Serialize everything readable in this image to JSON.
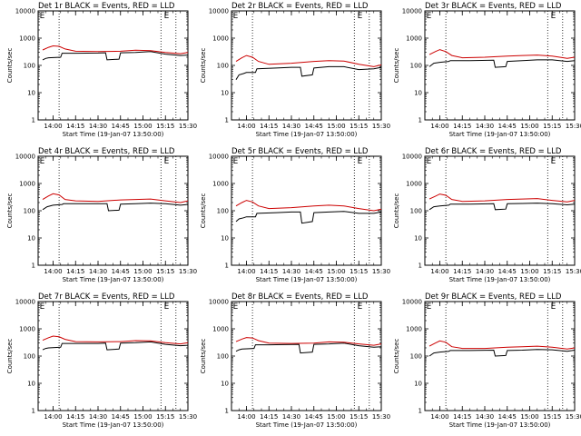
{
  "chart_data": [
    {
      "type": "line",
      "title": "Det 1r BLACK = Events, RED = LLD",
      "ylabel": "Counts/sec",
      "xlabel": "Start Time (19-Jan-07 13:50:00)",
      "yscale": "log",
      "ylim": [
        1,
        10000
      ],
      "xlim": [
        "13:50",
        "15:30"
      ],
      "x_ticks": [
        "14:00",
        "14:15",
        "14:30",
        "14:45",
        "15:00",
        "15:15",
        "15:30"
      ],
      "y_ticks": [
        "1",
        "10",
        "100",
        "1000",
        "10000"
      ],
      "vlines": [
        "14:04",
        "15:12",
        "15:22"
      ],
      "flags": [
        {
          "label": "E",
          "x": "13:51"
        },
        {
          "label": "E",
          "x": "15:14"
        }
      ],
      "series": [
        {
          "color": "#000000",
          "x": [
            "13:53",
            "13:55",
            "13:57",
            "14:05",
            "14:06",
            "14:15",
            "14:30",
            "14:35",
            "14:36",
            "14:44",
            "14:45",
            "14:55",
            "15:05",
            "15:15",
            "15:25",
            "15:30"
          ],
          "y": [
            160,
            180,
            190,
            200,
            280,
            280,
            285,
            290,
            160,
            170,
            290,
            300,
            320,
            260,
            230,
            240
          ]
        },
        {
          "color": "#cc0000",
          "x": [
            "13:53",
            "13:57",
            "14:00",
            "14:04",
            "14:08",
            "14:15",
            "14:30",
            "14:45",
            "14:55",
            "15:05",
            "15:15",
            "15:25",
            "15:30"
          ],
          "y": [
            370,
            460,
            520,
            500,
            400,
            330,
            320,
            330,
            360,
            350,
            300,
            270,
            300
          ]
        }
      ]
    },
    {
      "type": "line",
      "title": "Det 2r BLACK = Events, RED = LLD",
      "ylabel": "Counts/sec",
      "xlabel": "Start Time (19-Jan-07 13:50:00)",
      "yscale": "log",
      "ylim": [
        1,
        10000
      ],
      "xlim": [
        "13:50",
        "15:30"
      ],
      "x_ticks": [
        "14:00",
        "14:15",
        "14:30",
        "14:45",
        "15:00",
        "15:15",
        "15:30"
      ],
      "y_ticks": [
        "1",
        "10",
        "100",
        "1000",
        "10000"
      ],
      "vlines": [
        "14:04",
        "15:12",
        "15:22"
      ],
      "flags": [
        {
          "label": "E",
          "x": "13:51"
        },
        {
          "label": "E",
          "x": "15:14"
        }
      ],
      "series": [
        {
          "color": "#000000",
          "x": [
            "13:53",
            "13:55",
            "13:58",
            "14:00",
            "14:06",
            "14:07",
            "14:20",
            "14:30",
            "14:36",
            "14:37",
            "14:44",
            "14:45",
            "14:55",
            "15:05",
            "15:15",
            "15:25",
            "15:30"
          ],
          "y": [
            30,
            45,
            50,
            55,
            55,
            75,
            80,
            85,
            85,
            40,
            45,
            80,
            90,
            90,
            70,
            75,
            85
          ]
        },
        {
          "color": "#cc0000",
          "x": [
            "13:53",
            "13:57",
            "14:00",
            "14:04",
            "14:08",
            "14:15",
            "14:30",
            "14:45",
            "14:55",
            "15:05",
            "15:15",
            "15:25",
            "15:30"
          ],
          "y": [
            140,
            190,
            230,
            200,
            140,
            110,
            120,
            140,
            150,
            145,
            110,
            90,
            105
          ]
        }
      ]
    },
    {
      "type": "line",
      "title": "Det 3r BLACK = Events, RED = LLD",
      "ylabel": "Counts/sec",
      "xlabel": "Start Time (19-Jan-07 13:50:00)",
      "yscale": "log",
      "ylim": [
        1,
        10000
      ],
      "xlim": [
        "13:50",
        "15:30"
      ],
      "x_ticks": [
        "14:00",
        "14:15",
        "14:30",
        "14:45",
        "15:00",
        "15:15",
        "15:30"
      ],
      "y_ticks": [
        "1",
        "10",
        "100",
        "1000",
        "10000"
      ],
      "vlines": [
        "14:04",
        "15:12",
        "15:22"
      ],
      "flags": [
        {
          "label": "E",
          "x": "13:51"
        },
        {
          "label": "E",
          "x": "15:14"
        }
      ],
      "series": [
        {
          "color": "#000000",
          "x": [
            "13:53",
            "13:56",
            "14:00",
            "14:06",
            "14:07",
            "14:20",
            "14:36",
            "14:37",
            "14:44",
            "14:45",
            "14:55",
            "15:05",
            "15:15",
            "15:25",
            "15:30"
          ],
          "y": [
            90,
            120,
            130,
            140,
            150,
            150,
            155,
            85,
            90,
            140,
            150,
            160,
            160,
            140,
            150
          ]
        },
        {
          "color": "#cc0000",
          "x": [
            "13:53",
            "13:57",
            "14:00",
            "14:04",
            "14:08",
            "14:15",
            "14:30",
            "14:45",
            "14:55",
            "15:05",
            "15:15",
            "15:25",
            "15:30"
          ],
          "y": [
            250,
            320,
            380,
            320,
            230,
            190,
            200,
            220,
            230,
            240,
            220,
            180,
            200
          ]
        }
      ]
    },
    {
      "type": "line",
      "title": "Det 4r BLACK = Events, RED = LLD",
      "ylabel": "Counts/sec",
      "xlabel": "Start Time (19-Jan-07 13:50:00)",
      "yscale": "log",
      "ylim": [
        1,
        10000
      ],
      "xlim": [
        "13:50",
        "15:30"
      ],
      "x_ticks": [
        "14:00",
        "14:15",
        "14:30",
        "14:45",
        "15:00",
        "15:15",
        "15:30"
      ],
      "y_ticks": [
        "1",
        "10",
        "100",
        "1000",
        "10000"
      ],
      "vlines": [
        "14:04",
        "15:12",
        "15:22"
      ],
      "flags": [
        {
          "label": "E",
          "x": "13:51"
        },
        {
          "label": "E",
          "x": "15:14"
        }
      ],
      "series": [
        {
          "color": "#000000",
          "x": [
            "13:53",
            "13:56",
            "14:00",
            "14:06",
            "14:07",
            "14:20",
            "14:36",
            "14:37",
            "14:44",
            "14:45",
            "14:55",
            "15:05",
            "15:15",
            "15:25",
            "15:30"
          ],
          "y": [
            110,
            140,
            160,
            170,
            180,
            180,
            180,
            100,
            105,
            175,
            180,
            190,
            180,
            160,
            170
          ]
        },
        {
          "color": "#cc0000",
          "x": [
            "13:53",
            "13:57",
            "14:00",
            "14:04",
            "14:08",
            "14:15",
            "14:30",
            "14:45",
            "14:55",
            "15:05",
            "15:15",
            "15:25",
            "15:30"
          ],
          "y": [
            260,
            350,
            420,
            380,
            260,
            230,
            220,
            250,
            260,
            270,
            230,
            200,
            230
          ]
        }
      ]
    },
    {
      "type": "line",
      "title": "Det 5r BLACK = Events, RED = LLD",
      "ylabel": "Counts/sec",
      "xlabel": "Start Time (19-Jan-07 13:50:00)",
      "yscale": "log",
      "ylim": [
        1,
        10000
      ],
      "xlim": [
        "13:50",
        "15:30"
      ],
      "x_ticks": [
        "14:00",
        "14:15",
        "14:30",
        "14:45",
        "15:00",
        "15:15",
        "15:30"
      ],
      "y_ticks": [
        "1",
        "10",
        "100",
        "1000",
        "10000"
      ],
      "vlines": [
        "14:04",
        "15:12",
        "15:22"
      ],
      "flags": [
        {
          "label": "E",
          "x": "13:51"
        },
        {
          "label": "E",
          "x": "15:14"
        }
      ],
      "series": [
        {
          "color": "#000000",
          "x": [
            "13:53",
            "13:55",
            "13:58",
            "14:00",
            "14:06",
            "14:07",
            "14:20",
            "14:30",
            "14:36",
            "14:37",
            "14:44",
            "14:45",
            "14:55",
            "15:05",
            "15:15",
            "15:25",
            "15:30"
          ],
          "y": [
            40,
            50,
            55,
            60,
            60,
            80,
            85,
            90,
            90,
            35,
            40,
            85,
            90,
            95,
            80,
            80,
            90
          ]
        },
        {
          "color": "#cc0000",
          "x": [
            "13:53",
            "13:57",
            "14:00",
            "14:04",
            "14:08",
            "14:15",
            "14:30",
            "14:45",
            "14:55",
            "15:05",
            "15:15",
            "15:25",
            "15:30"
          ],
          "y": [
            150,
            200,
            240,
            210,
            150,
            120,
            130,
            150,
            160,
            150,
            120,
            100,
            115
          ]
        }
      ]
    },
    {
      "type": "line",
      "title": "Det 6r BLACK = Events, RED = LLD",
      "ylabel": "Counts/sec",
      "xlabel": "Start Time (19-Jan-07 13:50:00)",
      "yscale": "log",
      "ylim": [
        1,
        10000
      ],
      "xlim": [
        "13:50",
        "15:30"
      ],
      "x_ticks": [
        "14:00",
        "14:15",
        "14:30",
        "14:45",
        "15:00",
        "15:15",
        "15:30"
      ],
      "y_ticks": [
        "1",
        "10",
        "100",
        "1000",
        "10000"
      ],
      "vlines": [
        "14:04",
        "15:12",
        "15:22"
      ],
      "flags": [
        {
          "label": "E",
          "x": "13:51"
        },
        {
          "label": "E",
          "x": "15:14"
        }
      ],
      "series": [
        {
          "color": "#000000",
          "x": [
            "13:53",
            "13:56",
            "14:00",
            "14:06",
            "14:07",
            "14:20",
            "14:36",
            "14:37",
            "14:44",
            "14:45",
            "14:55",
            "15:05",
            "15:15",
            "15:25",
            "15:30"
          ],
          "y": [
            110,
            140,
            150,
            160,
            175,
            175,
            180,
            110,
            115,
            180,
            185,
            190,
            180,
            165,
            175
          ]
        },
        {
          "color": "#cc0000",
          "x": [
            "13:53",
            "13:57",
            "14:00",
            "14:04",
            "14:08",
            "14:15",
            "14:30",
            "14:45",
            "14:55",
            "15:05",
            "15:15",
            "15:25",
            "15:30"
          ],
          "y": [
            270,
            340,
            410,
            370,
            260,
            220,
            230,
            260,
            270,
            280,
            240,
            210,
            240
          ]
        }
      ]
    },
    {
      "type": "line",
      "title": "Det 7r BLACK = Events, RED = LLD",
      "ylabel": "Counts/sec",
      "xlabel": "Start Time (19-Jan-07 13:50:00)",
      "yscale": "log",
      "ylim": [
        1,
        10000
      ],
      "xlim": [
        "13:50",
        "15:30"
      ],
      "x_ticks": [
        "14:00",
        "14:15",
        "14:30",
        "14:45",
        "15:00",
        "15:15",
        "15:30"
      ],
      "y_ticks": [
        "1",
        "10",
        "100",
        "1000",
        "10000"
      ],
      "vlines": [
        "14:04",
        "15:12",
        "15:22"
      ],
      "flags": [
        {
          "label": "E",
          "x": "13:51"
        },
        {
          "label": "E",
          "x": "15:14"
        }
      ],
      "series": [
        {
          "color": "#000000",
          "x": [
            "13:53",
            "13:55",
            "13:57",
            "14:05",
            "14:06",
            "14:15",
            "14:30",
            "14:35",
            "14:36",
            "14:44",
            "14:45",
            "14:55",
            "15:05",
            "15:15",
            "15:25",
            "15:30"
          ],
          "y": [
            170,
            190,
            200,
            210,
            290,
            290,
            290,
            300,
            170,
            180,
            300,
            310,
            330,
            270,
            240,
            250
          ]
        },
        {
          "color": "#cc0000",
          "x": [
            "13:53",
            "13:57",
            "14:00",
            "14:04",
            "14:08",
            "14:15",
            "14:30",
            "14:45",
            "14:55",
            "15:05",
            "15:15",
            "15:25",
            "15:30"
          ],
          "y": [
            380,
            470,
            540,
            510,
            410,
            340,
            330,
            340,
            370,
            360,
            310,
            280,
            310
          ]
        }
      ]
    },
    {
      "type": "line",
      "title": "Det 8r BLACK = Events, RED = LLD",
      "ylabel": "Counts/sec",
      "xlabel": "Start Time (19-Jan-07 13:50:00)",
      "yscale": "log",
      "ylim": [
        1,
        10000
      ],
      "xlim": [
        "13:50",
        "15:30"
      ],
      "x_ticks": [
        "14:00",
        "14:15",
        "14:30",
        "14:45",
        "15:00",
        "15:15",
        "15:30"
      ],
      "y_ticks": [
        "1",
        "10",
        "100",
        "1000",
        "10000"
      ],
      "vlines": [
        "14:04",
        "15:12",
        "15:22"
      ],
      "flags": [
        {
          "label": "E",
          "x": "13:51"
        },
        {
          "label": "E",
          "x": "15:14"
        }
      ],
      "series": [
        {
          "color": "#000000",
          "x": [
            "13:53",
            "13:55",
            "13:57",
            "14:05",
            "14:06",
            "14:15",
            "14:30",
            "14:35",
            "14:36",
            "14:44",
            "14:45",
            "14:55",
            "15:05",
            "15:15",
            "15:25",
            "15:30"
          ],
          "y": [
            150,
            170,
            180,
            190,
            260,
            260,
            265,
            270,
            130,
            140,
            270,
            280,
            300,
            240,
            210,
            220
          ]
        },
        {
          "color": "#cc0000",
          "x": [
            "13:53",
            "13:57",
            "14:00",
            "14:04",
            "14:08",
            "14:15",
            "14:30",
            "14:45",
            "14:55",
            "15:05",
            "15:15",
            "15:25",
            "15:30"
          ],
          "y": [
            340,
            420,
            480,
            460,
            370,
            300,
            290,
            300,
            330,
            320,
            280,
            250,
            280
          ]
        }
      ]
    },
    {
      "type": "line",
      "title": "Det 9r BLACK = Events, RED = LLD",
      "ylabel": "Counts/sec",
      "xlabel": "Start Time (19-Jan-07 13:50:00)",
      "yscale": "log",
      "ylim": [
        1,
        10000
      ],
      "xlim": [
        "13:50",
        "15:30"
      ],
      "x_ticks": [
        "14:00",
        "14:15",
        "14:30",
        "14:45",
        "15:00",
        "15:15",
        "15:30"
      ],
      "y_ticks": [
        "1",
        "10",
        "100",
        "1000",
        "10000"
      ],
      "vlines": [
        "14:04",
        "15:12",
        "15:22"
      ],
      "flags": [
        {
          "label": "E",
          "x": "13:51"
        },
        {
          "label": "E",
          "x": "15:14"
        }
      ],
      "series": [
        {
          "color": "#000000",
          "x": [
            "13:53",
            "13:56",
            "14:00",
            "14:06",
            "14:07",
            "14:20",
            "14:36",
            "14:37",
            "14:44",
            "14:45",
            "14:55",
            "15:05",
            "15:15",
            "15:25",
            "15:30"
          ],
          "y": [
            100,
            130,
            140,
            150,
            160,
            160,
            165,
            100,
            105,
            160,
            165,
            175,
            170,
            150,
            165
          ]
        },
        {
          "color": "#cc0000",
          "x": [
            "13:53",
            "13:57",
            "14:00",
            "14:04",
            "14:08",
            "14:15",
            "14:30",
            "14:45",
            "14:55",
            "15:05",
            "15:15",
            "15:25",
            "15:30"
          ],
          "y": [
            230,
            300,
            360,
            320,
            220,
            190,
            190,
            210,
            220,
            230,
            210,
            180,
            200
          ]
        }
      ]
    }
  ]
}
